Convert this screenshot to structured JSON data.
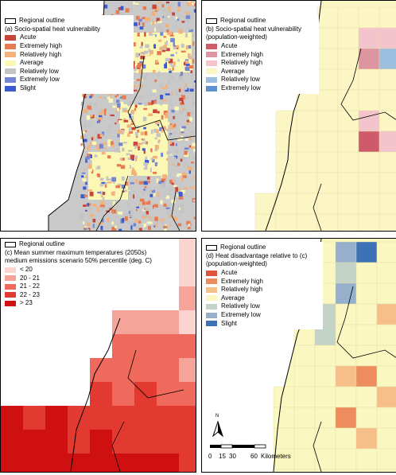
{
  "panels": [
    {
      "outline_label": "Regional outline",
      "title_lines": [
        "(a) Socio-spatial heat vulnerability"
      ],
      "items": [
        {
          "label": "Acute",
          "color": "#c8453a"
        },
        {
          "label": "Extremely high",
          "color": "#e67a52"
        },
        {
          "label": "Relatively high",
          "color": "#f3b27a"
        },
        {
          "label": "Average",
          "color": "#fbf7b4"
        },
        {
          "label": "Relatively low",
          "color": "#c4c4c4"
        },
        {
          "label": "Extremely low",
          "color": "#7385d3"
        },
        {
          "label": "Slight",
          "color": "#3a5bd0"
        }
      ]
    },
    {
      "outline_label": "Regional outline",
      "title_lines": [
        "(b) Socio-spatial heat vulnerability",
        "(population-weighted)"
      ],
      "items": [
        {
          "label": "Acute",
          "color": "#cf5a6a"
        },
        {
          "label": "Extremely high",
          "color": "#dd95a2"
        },
        {
          "label": "Relatively high",
          "color": "#f4c4cc"
        },
        {
          "label": "Average",
          "color": "#fbf6c4"
        },
        {
          "label": "Relatively low",
          "color": "#9cbfe0"
        },
        {
          "label": "Extremely low",
          "color": "#5e8fd0"
        }
      ]
    },
    {
      "outline_label": "Regional outline",
      "title_lines": [
        "(c) Mean summer maximum temperatures (2050s)",
        "medium emissions scenario 50% percentile (deg. C)"
      ],
      "items": [
        {
          "label": "< 20",
          "color": "#fbd4d0"
        },
        {
          "label": "20 - 21",
          "color": "#f6a49a"
        },
        {
          "label": "21 - 22",
          "color": "#ef6a5c"
        },
        {
          "label": "22 - 23",
          "color": "#e23a30"
        },
        {
          "label": "> 23",
          "color": "#cf1010"
        }
      ]
    },
    {
      "outline_label": "Regional outline",
      "title_lines": [
        "(d) Heat disadvantage relative to (c)",
        "(population-weighted)"
      ],
      "items": [
        {
          "label": "Acute",
          "color": "#e0543c"
        },
        {
          "label": "Extremely high",
          "color": "#ed8c5c"
        },
        {
          "label": "Relatively high",
          "color": "#f6bf8a"
        },
        {
          "label": "Average",
          "color": "#fbf7c0"
        },
        {
          "label": "Relatively low",
          "color": "#c4d3c8"
        },
        {
          "label": "Extremely low",
          "color": "#96b0cc"
        },
        {
          "label": "Slight",
          "color": "#3e72b6"
        }
      ]
    }
  ],
  "north_label": "N",
  "scale_bar": {
    "ticks": [
      "0",
      "15",
      "30",
      "60"
    ],
    "unit": "Kilometers"
  }
}
